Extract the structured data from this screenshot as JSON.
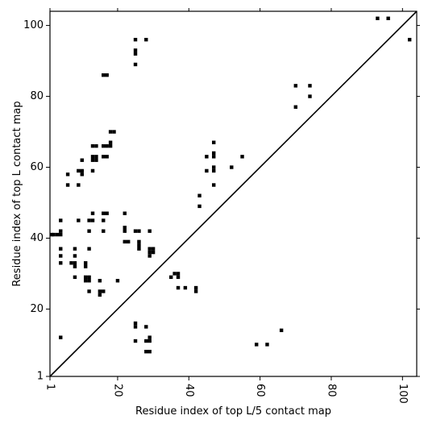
{
  "chart_data": {
    "type": "heatmap",
    "subtype": "contact-map",
    "title": "",
    "xlabel": "Residue index of top L/5 contact map",
    "ylabel": "Residue index of top L contact map",
    "xlim": [
      1,
      104
    ],
    "ylim": [
      1,
      104
    ],
    "xticks": [
      1,
      20,
      40,
      60,
      80,
      100
    ],
    "yticks": [
      1,
      20,
      40,
      60,
      80,
      100
    ],
    "x_tick_rotation": -90,
    "grid": false,
    "diagonal": true,
    "colors": {
      "contact": "#000000",
      "background": "#ffffff",
      "frame": "#000000"
    },
    "upper_contacts": [
      [
        1,
        41
      ],
      [
        2,
        41
      ],
      [
        3,
        41
      ],
      [
        4,
        41
      ],
      [
        4,
        12
      ],
      [
        4,
        33
      ],
      [
        4,
        35
      ],
      [
        4,
        37
      ],
      [
        4,
        42
      ],
      [
        4,
        45
      ],
      [
        6,
        55
      ],
      [
        6,
        58
      ],
      [
        7,
        33
      ],
      [
        8,
        29
      ],
      [
        8,
        32
      ],
      [
        8,
        33
      ],
      [
        8,
        35
      ],
      [
        8,
        37
      ],
      [
        9,
        45
      ],
      [
        9,
        55
      ],
      [
        9,
        59
      ],
      [
        10,
        58
      ],
      [
        10,
        59
      ],
      [
        10,
        62
      ],
      [
        11,
        28
      ],
      [
        11,
        29
      ],
      [
        11,
        32
      ],
      [
        11,
        33
      ],
      [
        12,
        25
      ],
      [
        12,
        28
      ],
      [
        12,
        29
      ],
      [
        12,
        37
      ],
      [
        12,
        42
      ],
      [
        12,
        45
      ],
      [
        13,
        45
      ],
      [
        13,
        47
      ],
      [
        13,
        59
      ],
      [
        13,
        62
      ],
      [
        13,
        63
      ],
      [
        13,
        66
      ],
      [
        14,
        62
      ],
      [
        14,
        63
      ],
      [
        14,
        66
      ],
      [
        15,
        24
      ],
      [
        15,
        25
      ],
      [
        15,
        28
      ],
      [
        16,
        25
      ],
      [
        16,
        42
      ],
      [
        16,
        45
      ],
      [
        16,
        47
      ],
      [
        16,
        63
      ],
      [
        16,
        66
      ],
      [
        16,
        86
      ],
      [
        17,
        47
      ],
      [
        17,
        63
      ],
      [
        17,
        66
      ],
      [
        17,
        86
      ],
      [
        18,
        66
      ],
      [
        18,
        67
      ],
      [
        18,
        70
      ],
      [
        19,
        70
      ],
      [
        20,
        28
      ],
      [
        22,
        39
      ],
      [
        22,
        42
      ],
      [
        22,
        43
      ],
      [
        22,
        47
      ],
      [
        23,
        39
      ],
      [
        25,
        11
      ],
      [
        25,
        15
      ],
      [
        25,
        16
      ],
      [
        25,
        42
      ],
      [
        25,
        89
      ],
      [
        25,
        92
      ],
      [
        25,
        93
      ],
      [
        25,
        96
      ],
      [
        26,
        37
      ],
      [
        26,
        38
      ],
      [
        26,
        39
      ],
      [
        26,
        42
      ],
      [
        28,
        8
      ],
      [
        28,
        11
      ],
      [
        28,
        15
      ],
      [
        28,
        96
      ],
      [
        29,
        8
      ],
      [
        29,
        11
      ],
      [
        29,
        12
      ],
      [
        29,
        35
      ],
      [
        29,
        36
      ],
      [
        29,
        37
      ],
      [
        29,
        42
      ],
      [
        30,
        36
      ],
      [
        30,
        37
      ],
      [
        35,
        29
      ],
      [
        36,
        30
      ],
      [
        37,
        26
      ],
      [
        37,
        29
      ],
      [
        37,
        30
      ],
      [
        39,
        26
      ],
      [
        42,
        25
      ],
      [
        42,
        26
      ],
      [
        43,
        49
      ],
      [
        43,
        52
      ],
      [
        45,
        59
      ],
      [
        45,
        63
      ],
      [
        47,
        55
      ],
      [
        47,
        59
      ],
      [
        47,
        60
      ],
      [
        47,
        63
      ],
      [
        47,
        64
      ],
      [
        47,
        67
      ],
      [
        52,
        60
      ],
      [
        55,
        63
      ],
      [
        59,
        10
      ],
      [
        62,
        10
      ],
      [
        66,
        14
      ],
      [
        70,
        77
      ],
      [
        70,
        83
      ],
      [
        74,
        80
      ],
      [
        74,
        83
      ],
      [
        93,
        102
      ],
      [
        96,
        102
      ],
      [
        102,
        96
      ]
    ]
  }
}
